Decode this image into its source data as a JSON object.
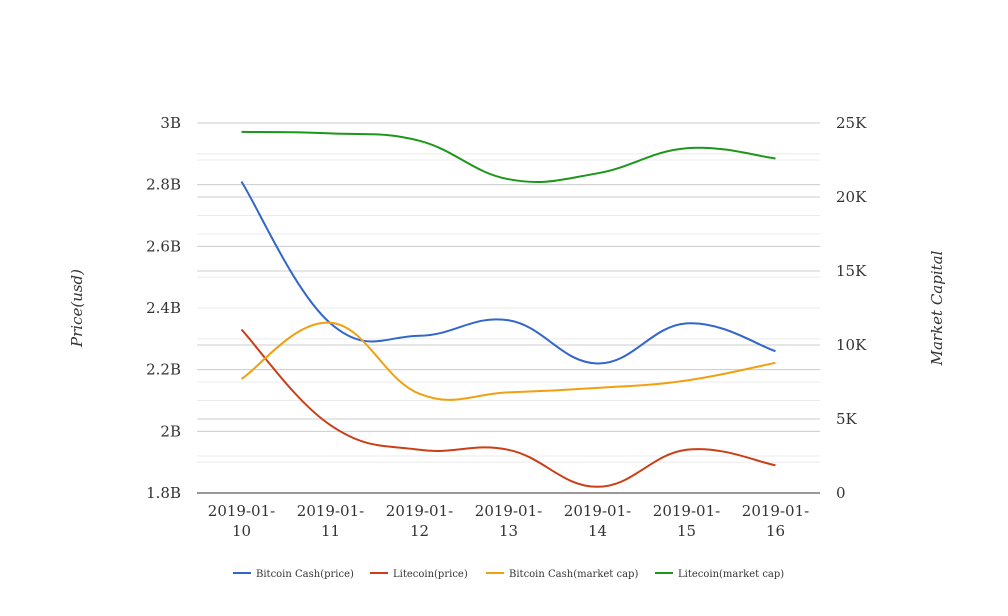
{
  "chart_data": {
    "type": "line",
    "title": "",
    "xlabel": "",
    "x": [
      "2019-01-10",
      "2019-01-11",
      "2019-01-12",
      "2019-01-13",
      "2019-01-14",
      "2019-01-15",
      "2019-01-16"
    ],
    "x_tick_labels": [
      [
        "2019-01-",
        "10"
      ],
      [
        "2019-01-",
        "11"
      ],
      [
        "2019-01-",
        "12"
      ],
      [
        "2019-01-",
        "13"
      ],
      [
        "2019-01-",
        "14"
      ],
      [
        "2019-01-",
        "15"
      ],
      [
        "2019-01-",
        "16"
      ]
    ],
    "y_left": {
      "label": "Price(usd)",
      "range": [
        1.8,
        3.0
      ],
      "ticks": [
        1.8,
        2.0,
        2.2,
        2.4,
        2.6,
        2.8,
        3.0
      ],
      "tick_labels": [
        "1.8B",
        "2B",
        "2.2B",
        "2.4B",
        "2.6B",
        "2.8B",
        "3B"
      ]
    },
    "y_right": {
      "label": "Market Capital",
      "range": [
        0,
        25000
      ],
      "ticks": [
        0,
        5000,
        10000,
        15000,
        20000,
        25000
      ],
      "tick_labels": [
        "0",
        "5K",
        "10K",
        "15K",
        "20K",
        "25K"
      ]
    },
    "grid": true,
    "legend_position": "bottom",
    "series": [
      {
        "name": "Bitcoin Cash(price)",
        "axis": "left",
        "color": "#3366cc",
        "values": [
          2.81,
          2.35,
          2.31,
          2.36,
          2.22,
          2.35,
          2.26
        ]
      },
      {
        "name": "Litecoin(price)",
        "axis": "left",
        "color": "#cc3e17",
        "values": [
          2.33,
          2.02,
          1.94,
          1.94,
          1.82,
          1.94,
          1.89
        ]
      },
      {
        "name": "Bitcoin Cash(market cap)",
        "axis": "right",
        "color": "#f0a010",
        "values": [
          7700,
          11500,
          6700,
          6800,
          7100,
          7600,
          8800
        ]
      },
      {
        "name": "Litecoin(market cap)",
        "axis": "right",
        "color": "#1e9619",
        "values": [
          24400,
          24300,
          23800,
          21200,
          21600,
          23300,
          22600
        ]
      }
    ]
  }
}
